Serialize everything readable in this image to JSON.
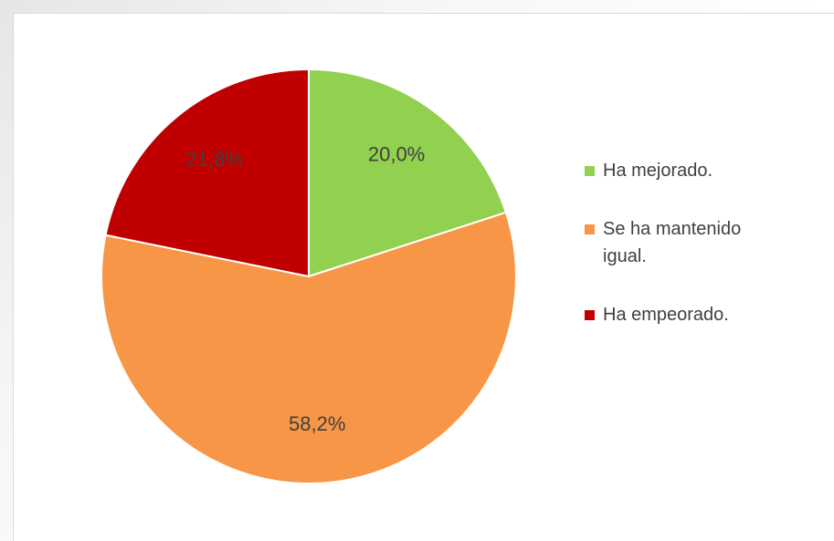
{
  "chart_data": {
    "type": "pie",
    "categories": [
      "Ha mejorado.",
      "Se ha mantenido igual.",
      "Ha empeorado."
    ],
    "values": [
      20.0,
      58.2,
      21.8
    ],
    "value_labels": [
      "20,0%",
      "58,2%",
      "21,8%"
    ],
    "colors": [
      "#92d050",
      "#f79646",
      "#c00000"
    ],
    "legend": "right"
  }
}
